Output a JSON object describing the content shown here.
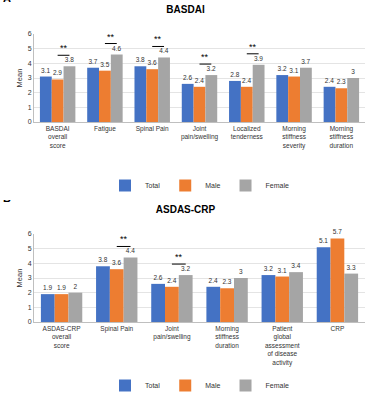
{
  "chart_data": [
    {
      "type": "bar",
      "panel_label": "A",
      "title": "BASDAI",
      "y_label": "Mean",
      "categories": [
        "BASDAI overall score",
        "Fatigue",
        "Spinal Pain",
        "Joint pain/swelling",
        "Localized tenderness",
        "Morning stiffness severity",
        "Morning stiffness duration"
      ],
      "series": [
        {
          "name": "Total",
          "color": "#4472c4",
          "values": [
            3.1,
            3.7,
            3.8,
            2.6,
            2.8,
            3.2,
            2.4
          ]
        },
        {
          "name": "Male",
          "color": "#ed7d31",
          "values": [
            2.9,
            3.5,
            3.6,
            2.4,
            2.4,
            3.1,
            2.3
          ]
        },
        {
          "name": "Female",
          "color": "#a5a5a5",
          "values": [
            3.8,
            4.6,
            4.4,
            3.2,
            3.9,
            3.7,
            3.0
          ]
        }
      ],
      "annotations": [
        {
          "category": "BASDAI overall score",
          "text": "**"
        },
        {
          "category": "Fatigue",
          "text": "**"
        },
        {
          "category": "Spinal Pain",
          "text": "**"
        },
        {
          "category": "Joint pain/swelling",
          "text": "**"
        },
        {
          "category": "Localized tenderness",
          "text": "**"
        }
      ],
      "ylim": [
        0,
        6
      ],
      "yticks": [
        0,
        1,
        2,
        3,
        4,
        5,
        6
      ],
      "grid": true,
      "data_labels": true,
      "legend": "bottom"
    },
    {
      "type": "bar",
      "panel_label": "B",
      "title": "ASDAS-CRP",
      "y_label": "Mean",
      "categories": [
        "ASDAS-CRP overall score",
        "Spinal Pain",
        "Joint pain/swelling",
        "Morning stiffness duration",
        "Patient global assessment of disease activity",
        "CRP"
      ],
      "series": [
        {
          "name": "Total",
          "color": "#4472c4",
          "values": [
            1.9,
            3.8,
            2.6,
            2.4,
            3.2,
            5.1
          ]
        },
        {
          "name": "Male",
          "color": "#ed7d31",
          "values": [
            1.9,
            3.6,
            2.4,
            2.3,
            3.1,
            5.7
          ]
        },
        {
          "name": "Female",
          "color": "#a5a5a5",
          "values": [
            2.0,
            4.4,
            3.2,
            3.0,
            3.4,
            3.3
          ]
        }
      ],
      "annotations": [
        {
          "category": "Spinal Pain",
          "text": "**"
        },
        {
          "category": "Joint pain/swelling",
          "text": "**"
        }
      ],
      "ylim": [
        0,
        6
      ],
      "yticks": [
        0,
        1,
        2,
        3,
        4,
        5,
        6
      ],
      "grid": true,
      "data_labels": true,
      "legend": "bottom"
    }
  ]
}
